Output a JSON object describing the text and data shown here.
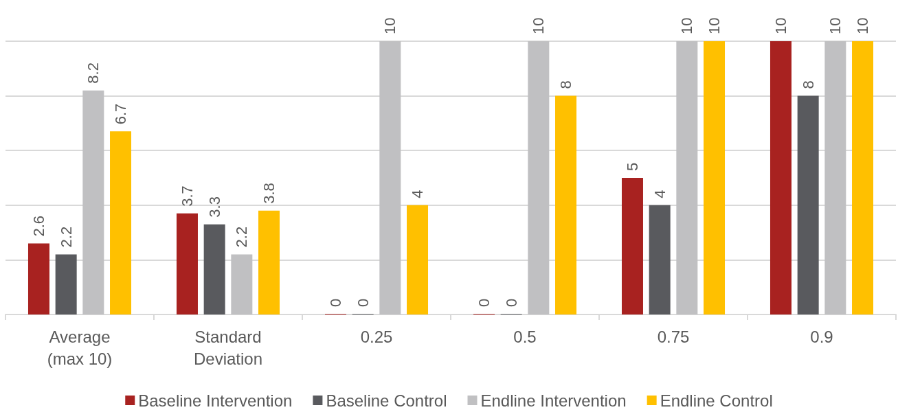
{
  "chart_data": {
    "type": "bar",
    "categories": [
      "Average\n(max 10)",
      "Standard\nDeviation",
      "0.25",
      "0.5",
      "0.75",
      "0.9"
    ],
    "series": [
      {
        "name": "Baseline Intervention",
        "color": "#a82220",
        "values": [
          2.6,
          3.7,
          0,
          0,
          5,
          10
        ]
      },
      {
        "name": "Baseline Control",
        "color": "#595a5e",
        "values": [
          2.2,
          3.3,
          0,
          0,
          4,
          8
        ]
      },
      {
        "name": "Endline Intervention",
        "color": "#c0c0c2",
        "values": [
          8.2,
          2.2,
          10,
          10,
          10,
          10
        ]
      },
      {
        "name": "Endline Control",
        "color": "#ffc000",
        "values": [
          6.7,
          3.8,
          4,
          8,
          10,
          10
        ]
      }
    ],
    "ylim": [
      0,
      10
    ],
    "yticks": [
      {
        "value": 0,
        "label": null
      },
      {
        "value": 2,
        "label": null
      },
      {
        "value": 4,
        "label": null
      },
      {
        "value": 6,
        "label": null
      },
      {
        "value": 8,
        "label": null
      },
      {
        "value": 10,
        "label": null
      }
    ],
    "tick_labels": "x",
    "grid": "y",
    "legend": "bottom",
    "data_labels": true
  }
}
